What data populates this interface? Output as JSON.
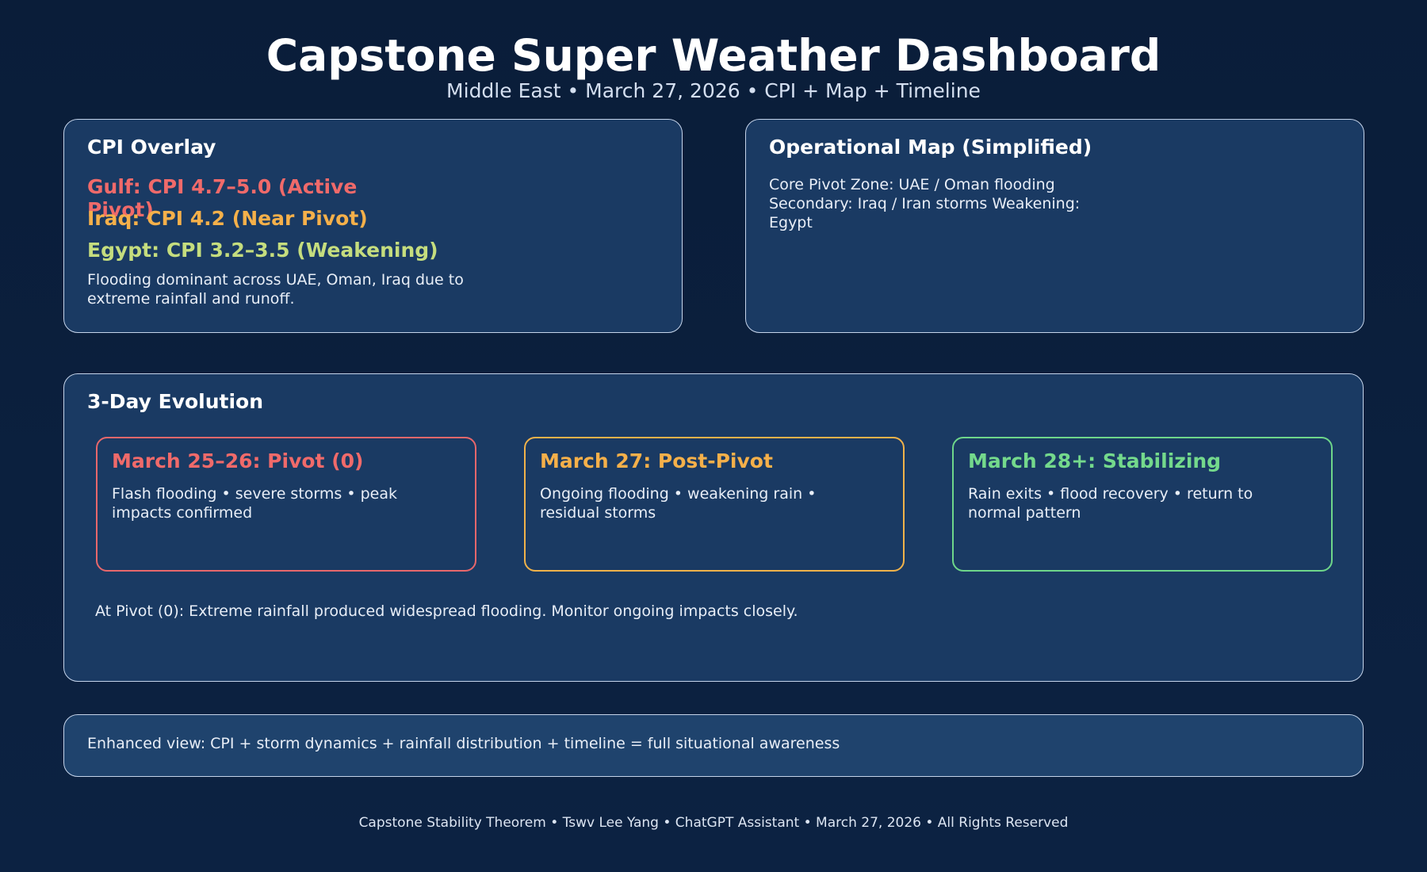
{
  "header": {
    "title": "Capstone Super Weather Dashboard",
    "subtitle": "Middle East • March 27, 2026 • CPI + Map + Timeline"
  },
  "cpi_overlay": {
    "title": "CPI Overlay",
    "lines": [
      "Gulf: CPI 4.7–5.0 (Active Pivot)",
      "Iraq: CPI 4.2 (Near Pivot)",
      "Egypt: CPI 3.2–3.5 (Weakening)"
    ],
    "note": "Flooding dominant across UAE, Oman, Iraq due to extreme rainfall and runoff."
  },
  "map": {
    "title": "Operational Map (Simplified)",
    "lines": [
      "Core Pivot Zone: UAE / Oman flooding",
      "Secondary: Iraq / Iran storms",
      "Weakening: Egypt"
    ]
  },
  "evolution": {
    "title": "3-Day Evolution",
    "cards": [
      {
        "title": "March 25–26: Pivot (0)",
        "text": "Flash flooding • severe storms • peak impacts confirmed"
      },
      {
        "title": "March 27: Post-Pivot",
        "text": "Ongoing flooding • weakening rain • residual storms"
      },
      {
        "title": "March 28+: Stabilizing",
        "text": "Rain exits • flood recovery • return to normal pattern"
      }
    ],
    "note": "At Pivot (0): Extreme rainfall produced widespread flooding. Monitor ongoing impacts closely."
  },
  "summary": {
    "text": "Enhanced view: CPI + storm dynamics + rainfall distribution + timeline = full situational awareness"
  },
  "footer": {
    "text": "Capstone Stability Theorem • Tswv Lee Yang • ChatGPT Assistant • March 27, 2026 • All Rights Reserved"
  }
}
